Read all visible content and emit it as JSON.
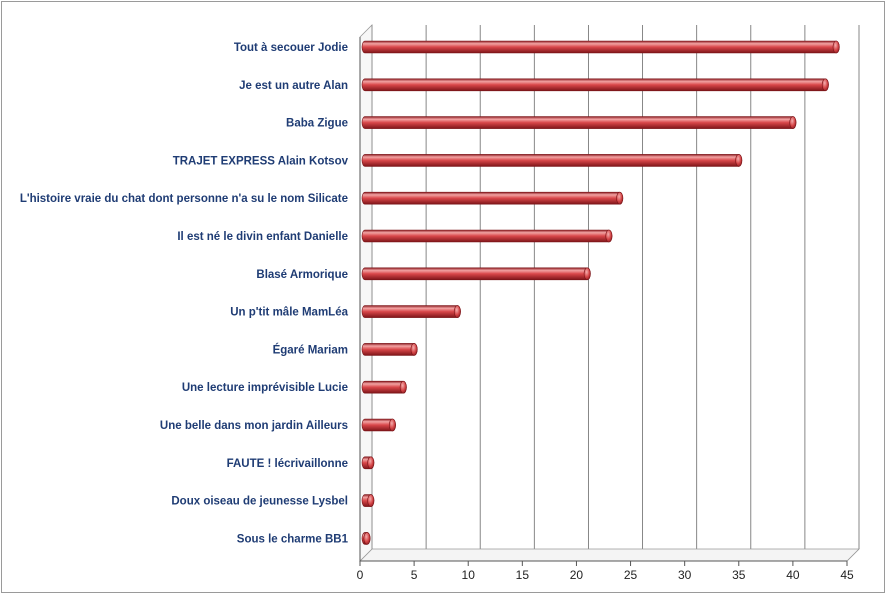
{
  "chart_data": {
    "type": "bar",
    "orientation": "horizontal",
    "title": "",
    "xlabel": "",
    "ylabel": "",
    "categories": [
      "Tout à secouer Jodie",
      "Je est un autre Alan",
      "Baba Zigue",
      "TRAJET EXPRESS Alain Kotsov",
      "L'histoire vraie du chat dont personne n'a su le nom  Silicate",
      "Il est né le divin enfant Danielle",
      "Blasé Armorique",
      "Un p'tit mâle MamLéa",
      "Égaré Mariam",
      "Une lecture imprévisible Lucie",
      "Une belle dans mon jardin Ailleurs",
      "FAUTE ! lécrivaillonne",
      "Doux oiseau de jeunesse Lysbel",
      "Sous le charme BB1"
    ],
    "values": [
      44,
      43,
      40,
      35,
      24,
      23,
      21,
      9,
      5,
      4,
      3,
      1,
      1,
      0
    ],
    "xlim": [
      0,
      45
    ],
    "xticks": [
      "0",
      "5",
      "10",
      "15",
      "20",
      "25",
      "30",
      "35",
      "40",
      "45"
    ],
    "grid": "vertical",
    "legend": "none",
    "colors": {
      "bar_main": "#d9474a",
      "bar_light": "#f2a3a3",
      "bar_dark": "#8e1d22",
      "label": "#1f3c74",
      "grid": "#7a7a7a"
    }
  }
}
